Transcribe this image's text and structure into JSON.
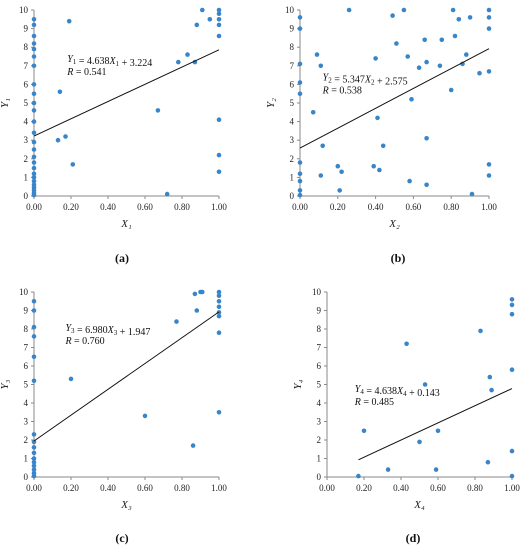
{
  "chart_data": [
    {
      "type": "scatter",
      "title": "",
      "xlabel": "X₁",
      "ylabel": "Y₁",
      "xlim": [
        0,
        1
      ],
      "ylim": [
        0,
        10
      ],
      "xticks": [
        "0.00",
        "0.20",
        "0.40",
        "0.60",
        "0.80",
        "1.00"
      ],
      "yticks": [
        "0",
        "1",
        "2",
        "3",
        "4",
        "5",
        "6",
        "7",
        "8",
        "9",
        "10"
      ],
      "points": [
        [
          0,
          0.05
        ],
        [
          0,
          0.15
        ],
        [
          0,
          0.3
        ],
        [
          0,
          0.45
        ],
        [
          0,
          0.6
        ],
        [
          0,
          0.8
        ],
        [
          0,
          1.0
        ],
        [
          0,
          1.2
        ],
        [
          0,
          1.5
        ],
        [
          0,
          1.8
        ],
        [
          0,
          2.1
        ],
        [
          0,
          2.5
        ],
        [
          0,
          2.9
        ],
        [
          0,
          3.4
        ],
        [
          0,
          4.0
        ],
        [
          0,
          4.6
        ],
        [
          0,
          5.0
        ],
        [
          0,
          5.5
        ],
        [
          0,
          6.0
        ],
        [
          0,
          7.0
        ],
        [
          0,
          7.5
        ],
        [
          0,
          7.9
        ],
        [
          0,
          8.2
        ],
        [
          0,
          8.6
        ],
        [
          0,
          9.2
        ],
        [
          0,
          9.5
        ],
        [
          0.13,
          3.0
        ],
        [
          0.14,
          5.6
        ],
        [
          0.17,
          3.2
        ],
        [
          0.19,
          9.4
        ],
        [
          0.21,
          1.7
        ],
        [
          0.67,
          4.6
        ],
        [
          0.72,
          0.1
        ],
        [
          0.78,
          7.2
        ],
        [
          0.83,
          7.6
        ],
        [
          0.87,
          7.2
        ],
        [
          0.88,
          9.2
        ],
        [
          0.91,
          10.0
        ],
        [
          0.95,
          9.5
        ],
        [
          1.0,
          10.0
        ],
        [
          1.0,
          9.8
        ],
        [
          1.0,
          9.5
        ],
        [
          1.0,
          9.2
        ],
        [
          1.0,
          8.6
        ],
        [
          1.0,
          4.1
        ],
        [
          1.0,
          2.2
        ],
        [
          1.0,
          1.3
        ]
      ],
      "fit": {
        "slope": 4.638,
        "intercept": 3.224
      },
      "equation": "Y1 = 4.638X1 + 3.224",
      "r_label": "R = 0.541",
      "caption": "(a)"
    },
    {
      "type": "scatter",
      "title": "",
      "xlabel": "X₂",
      "ylabel": "Y₂",
      "xlim": [
        0,
        1
      ],
      "ylim": [
        0,
        10
      ],
      "xticks": [
        "0.00",
        "0.20",
        "0.40",
        "0.60",
        "0.80",
        "1.00"
      ],
      "yticks": [
        "0",
        "1",
        "2",
        "3",
        "4",
        "5",
        "6",
        "7",
        "8",
        "9",
        "10"
      ],
      "points": [
        [
          0,
          0.05
        ],
        [
          0,
          0.3
        ],
        [
          0,
          0.8
        ],
        [
          0,
          1.2
        ],
        [
          0,
          1.8
        ],
        [
          0,
          5.5
        ],
        [
          0,
          6.1
        ],
        [
          0,
          7.1
        ],
        [
          0,
          9.0
        ],
        [
          0,
          9.6
        ],
        [
          0.07,
          4.5
        ],
        [
          0.09,
          7.6
        ],
        [
          0.11,
          7.0
        ],
        [
          0.11,
          1.1
        ],
        [
          0.12,
          2.7
        ],
        [
          0.2,
          1.6
        ],
        [
          0.21,
          0.3
        ],
        [
          0.22,
          1.3
        ],
        [
          0.26,
          10.0
        ],
        [
          0.39,
          1.6
        ],
        [
          0.4,
          7.4
        ],
        [
          0.41,
          4.2
        ],
        [
          0.42,
          1.4
        ],
        [
          0.44,
          2.7
        ],
        [
          0.49,
          9.7
        ],
        [
          0.51,
          8.2
        ],
        [
          0.55,
          10.0
        ],
        [
          0.57,
          7.5
        ],
        [
          0.58,
          0.8
        ],
        [
          0.59,
          5.2
        ],
        [
          0.63,
          6.9
        ],
        [
          0.66,
          8.4
        ],
        [
          0.67,
          7.2
        ],
        [
          0.67,
          3.1
        ],
        [
          0.67,
          0.6
        ],
        [
          0.74,
          7.0
        ],
        [
          0.75,
          8.4
        ],
        [
          0.8,
          5.7
        ],
        [
          0.81,
          10.0
        ],
        [
          0.82,
          8.6
        ],
        [
          0.84,
          9.5
        ],
        [
          0.86,
          7.1
        ],
        [
          0.88,
          7.6
        ],
        [
          0.9,
          9.6
        ],
        [
          0.91,
          0.1
        ],
        [
          0.95,
          6.6
        ],
        [
          1.0,
          10.0
        ],
        [
          1.0,
          9.6
        ],
        [
          1.0,
          9.0
        ],
        [
          1.0,
          6.7
        ],
        [
          1.0,
          1.7
        ],
        [
          1.0,
          1.1
        ]
      ],
      "fit": {
        "slope": 5.347,
        "intercept": 2.575
      },
      "equation": "Y2 = 5.347X2 + 2.575",
      "r_label": "R = 0.538",
      "caption": "(b)"
    },
    {
      "type": "scatter",
      "title": "",
      "xlabel": "X₃",
      "ylabel": "Y₃",
      "xlim": [
        0,
        1
      ],
      "ylim": [
        0,
        10
      ],
      "xticks": [
        "0.00",
        "0.20",
        "0.40",
        "0.60",
        "0.80",
        "1.00"
      ],
      "yticks": [
        "0",
        "1",
        "2",
        "3",
        "4",
        "5",
        "6",
        "7",
        "8",
        "9",
        "10"
      ],
      "points": [
        [
          0,
          0.05
        ],
        [
          0,
          0.2
        ],
        [
          0,
          0.4
        ],
        [
          0,
          0.6
        ],
        [
          0,
          0.8
        ],
        [
          0,
          1.0
        ],
        [
          0,
          1.3
        ],
        [
          0,
          1.6
        ],
        [
          0,
          1.9
        ],
        [
          0,
          2.3
        ],
        [
          0,
          5.2
        ],
        [
          0,
          6.5
        ],
        [
          0,
          7.6
        ],
        [
          0,
          8.1
        ],
        [
          0,
          9.0
        ],
        [
          0,
          9.5
        ],
        [
          0.2,
          5.3
        ],
        [
          0.6,
          3.3
        ],
        [
          0.77,
          8.4
        ],
        [
          0.86,
          1.7
        ],
        [
          0.87,
          9.9
        ],
        [
          0.88,
          9.0
        ],
        [
          0.9,
          10.0
        ],
        [
          0.91,
          10.0
        ],
        [
          1.0,
          10.0
        ],
        [
          1.0,
          9.8
        ],
        [
          1.0,
          9.5
        ],
        [
          1.0,
          9.2
        ],
        [
          1.0,
          8.9
        ],
        [
          1.0,
          8.7
        ],
        [
          1.0,
          7.8
        ],
        [
          1.0,
          3.5
        ]
      ],
      "fit": {
        "slope": 6.98,
        "intercept": 1.947
      },
      "equation": "Y3 = 6.980X3 + 1.947",
      "r_label": "R = 0.760",
      "caption": "(c)"
    },
    {
      "type": "scatter",
      "title": "",
      "xlabel": "X₄",
      "ylabel": "Y₄",
      "xlim": [
        0,
        1
      ],
      "ylim": [
        0,
        10
      ],
      "xticks": [
        "0.00",
        "0.20",
        "0.40",
        "0.60",
        "0.80",
        "1.00"
      ],
      "yticks": [
        "0",
        "1",
        "2",
        "3",
        "4",
        "5",
        "6",
        "7",
        "8",
        "9",
        "10"
      ],
      "points": [
        [
          0.17,
          0.05
        ],
        [
          0.2,
          2.5
        ],
        [
          0.33,
          0.4
        ],
        [
          0.43,
          7.2
        ],
        [
          0.5,
          1.9
        ],
        [
          0.53,
          5.0
        ],
        [
          0.59,
          0.4
        ],
        [
          0.6,
          2.5
        ],
        [
          0.83,
          7.9
        ],
        [
          0.87,
          0.8
        ],
        [
          0.88,
          5.4
        ],
        [
          0.89,
          4.7
        ],
        [
          1.0,
          9.6
        ],
        [
          1.0,
          9.3
        ],
        [
          1.0,
          8.8
        ],
        [
          1.0,
          5.8
        ],
        [
          1.0,
          1.4
        ],
        [
          1.0,
          0.05
        ]
      ],
      "fit": {
        "slope": 4.638,
        "intercept": 0.143
      },
      "equation": "Y4 = 4.638X4 + 0.143",
      "r_label": "R = 0.485",
      "caption": "(d)"
    }
  ],
  "colors": {
    "point": "#3a85c8",
    "fit_line": "#111111",
    "axis": "#8a8a8a"
  }
}
